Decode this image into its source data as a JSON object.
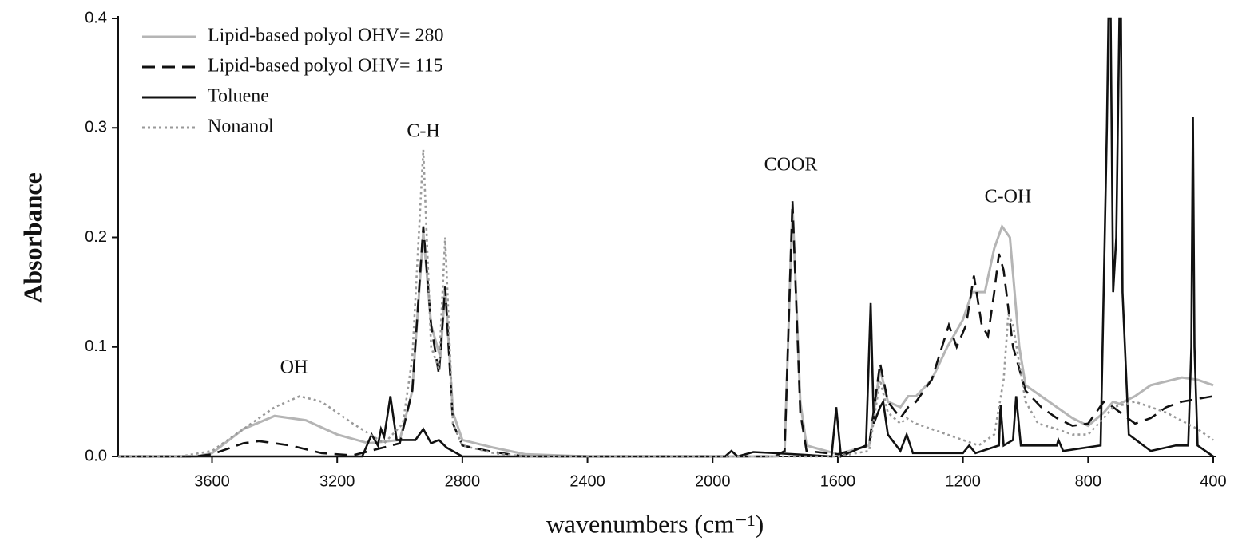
{
  "chart_data": {
    "type": "line",
    "x_label": "wavenumbers (cm⁻¹)",
    "y_label": "Absorbance",
    "xlim": [
      3900,
      400
    ],
    "ylim": [
      0,
      0.4
    ],
    "xticks": [
      3600,
      3200,
      2800,
      2400,
      2000,
      1600,
      1200,
      800,
      400
    ],
    "yticks": [
      {
        "value": 0,
        "label": "0.0"
      },
      0.1,
      0.2,
      0.3,
      0.4
    ],
    "legend": "upper left",
    "annotations": [
      "OH",
      "C-H",
      "COOR",
      "C-OH"
    ],
    "series": [
      {
        "name": "Lipid-based polyol OHV= 280",
        "color": "#b5b5b5",
        "style": "solid",
        "x": [
          3900,
          3650,
          3600,
          3500,
          3400,
          3300,
          3200,
          3100,
          3000,
          2960,
          2925,
          2900,
          2870,
          2855,
          2830,
          2800,
          2700,
          2600,
          2400,
          1800,
          1770,
          1745,
          1720,
          1700,
          1600,
          1500,
          1465,
          1440,
          1400,
          1375,
          1350,
          1300,
          1250,
          1200,
          1170,
          1130,
          1100,
          1075,
          1050,
          1020,
          1000,
          950,
          900,
          850,
          800,
          750,
          720,
          700,
          650,
          600,
          500,
          450,
          400
        ],
        "values": [
          0,
          0,
          0.003,
          0.025,
          0.037,
          0.033,
          0.02,
          0.012,
          0.015,
          0.06,
          0.205,
          0.12,
          0.09,
          0.155,
          0.04,
          0.015,
          0.008,
          0.002,
          0,
          0,
          0.005,
          0.23,
          0.05,
          0.01,
          0.002,
          0.01,
          0.08,
          0.05,
          0.045,
          0.055,
          0.055,
          0.07,
          0.1,
          0.125,
          0.15,
          0.15,
          0.19,
          0.21,
          0.2,
          0.1,
          0.065,
          0.055,
          0.045,
          0.035,
          0.028,
          0.04,
          0.05,
          0.048,
          0.055,
          0.065,
          0.072,
          0.07,
          0.065
        ]
      },
      {
        "name": "Lipid-based polyol OHV= 115",
        "color": "#111111",
        "style": "dashed",
        "x": [
          3900,
          3650,
          3600,
          3500,
          3450,
          3350,
          3250,
          3150,
          3000,
          2960,
          2925,
          2900,
          2875,
          2855,
          2830,
          2800,
          2700,
          2600,
          1800,
          1770,
          1745,
          1720,
          1700,
          1600,
          1500,
          1465,
          1440,
          1400,
          1375,
          1350,
          1300,
          1245,
          1220,
          1190,
          1165,
          1140,
          1120,
          1100,
          1085,
          1070,
          1040,
          1000,
          950,
          900,
          850,
          800,
          750,
          720,
          650,
          600,
          550,
          500,
          400
        ],
        "values": [
          0,
          0,
          0.002,
          0.012,
          0.014,
          0.01,
          0.003,
          0.001,
          0.012,
          0.06,
          0.21,
          0.12,
          0.075,
          0.155,
          0.03,
          0.01,
          0.004,
          0,
          0,
          0.005,
          0.233,
          0.04,
          0.005,
          0.002,
          0.01,
          0.085,
          0.05,
          0.035,
          0.045,
          0.05,
          0.07,
          0.12,
          0.1,
          0.12,
          0.165,
          0.12,
          0.11,
          0.15,
          0.185,
          0.17,
          0.1,
          0.06,
          0.045,
          0.035,
          0.028,
          0.03,
          0.05,
          0.045,
          0.03,
          0.035,
          0.045,
          0.05,
          0.055
        ]
      },
      {
        "name": "Toluene",
        "color": "#111111",
        "style": "solid",
        "x": [
          3900,
          3120,
          3090,
          3070,
          3060,
          3050,
          3030,
          3010,
          2950,
          2925,
          2900,
          2875,
          2850,
          2800,
          1960,
          1940,
          1920,
          1870,
          1800,
          1620,
          1605,
          1590,
          1510,
          1495,
          1485,
          1465,
          1455,
          1440,
          1400,
          1380,
          1360,
          1200,
          1180,
          1160,
          1085,
          1080,
          1070,
          1040,
          1030,
          1015,
          900,
          895,
          880,
          760,
          740,
          735,
          728,
          720,
          710,
          700,
          695,
          690,
          670,
          600,
          520,
          480,
          470,
          465,
          460,
          450,
          400
        ],
        "values": [
          0,
          0,
          0.02,
          0.01,
          0.025,
          0.018,
          0.055,
          0.015,
          0.015,
          0.025,
          0.012,
          0.015,
          0.008,
          0,
          0,
          0.005,
          0,
          0.004,
          0.003,
          0,
          0.045,
          0,
          0.01,
          0.14,
          0.03,
          0.045,
          0.05,
          0.02,
          0.005,
          0.02,
          0.003,
          0.003,
          0.01,
          0.003,
          0.01,
          0.047,
          0.01,
          0.015,
          0.055,
          0.01,
          0.01,
          0.015,
          0.005,
          0.01,
          0.3,
          0.4,
          0.4,
          0.15,
          0.2,
          0.4,
          0.4,
          0.15,
          0.02,
          0.005,
          0.01,
          0.01,
          0.1,
          0.31,
          0.1,
          0.01,
          0
        ]
      },
      {
        "name": "Nonanol",
        "color": "#9a9a9a",
        "style": "dotted",
        "x": [
          3900,
          3700,
          3600,
          3500,
          3400,
          3320,
          3250,
          3150,
          3050,
          2990,
          2960,
          2925,
          2900,
          2875,
          2855,
          2830,
          2800,
          2700,
          2600,
          1800,
          1600,
          1500,
          1465,
          1440,
          1400,
          1380,
          1350,
          1300,
          1200,
          1150,
          1100,
          1070,
          1055,
          1040,
          1000,
          960,
          900,
          850,
          800,
          750,
          720,
          650,
          550,
          450,
          400
        ],
        "values": [
          0,
          0,
          0.005,
          0.025,
          0.045,
          0.055,
          0.05,
          0.03,
          0.012,
          0.03,
          0.09,
          0.28,
          0.1,
          0.08,
          0.2,
          0.03,
          0.01,
          0.003,
          0,
          0,
          0,
          0.005,
          0.07,
          0.04,
          0.03,
          0.035,
          0.03,
          0.025,
          0.015,
          0.01,
          0.02,
          0.07,
          0.13,
          0.12,
          0.05,
          0.03,
          0.025,
          0.02,
          0.02,
          0.035,
          0.045,
          0.05,
          0.04,
          0.025,
          0.015
        ]
      }
    ]
  }
}
